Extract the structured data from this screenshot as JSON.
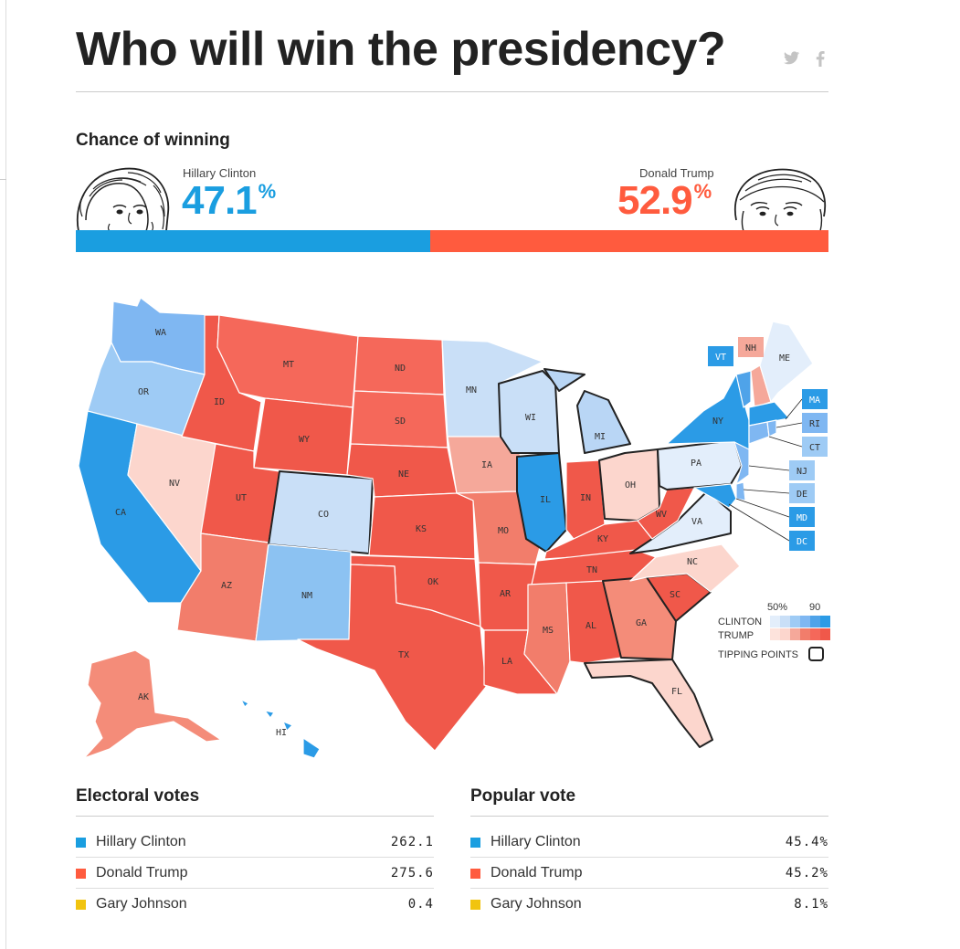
{
  "title": "Who will win the presidency?",
  "share": {
    "twitter": "twitter-icon",
    "facebook": "facebook-icon"
  },
  "chance": {
    "label": "Chance of winning",
    "clinton": {
      "name": "Hillary Clinton",
      "value": "47.1",
      "unit": "%",
      "fraction": 0.471,
      "color": "#1a9ee0"
    },
    "trump": {
      "name": "Donald Trump",
      "value": "52.9",
      "unit": "%",
      "fraction": 0.529,
      "color": "#ff5b3e"
    }
  },
  "map": {
    "states": [
      "WA",
      "OR",
      "CA",
      "NV",
      "ID",
      "MT",
      "WY",
      "UT",
      "AZ",
      "CO",
      "NM",
      "ND",
      "SD",
      "NE",
      "KS",
      "OK",
      "TX",
      "MN",
      "IA",
      "MO",
      "AR",
      "LA",
      "WI",
      "IL",
      "MI",
      "IN",
      "OH",
      "KY",
      "TN",
      "MS",
      "AL",
      "GA",
      "SC",
      "NC",
      "VA",
      "WV",
      "PA",
      "NY",
      "VT",
      "NH",
      "ME",
      "MA",
      "RI",
      "CT",
      "NJ",
      "DE",
      "MD",
      "DC",
      "FL",
      "AK",
      "HI"
    ],
    "boxes": [
      "VT",
      "NH",
      "ME",
      "MA",
      "RI",
      "CT",
      "NJ",
      "DE",
      "MD",
      "DC"
    ],
    "legend": {
      "low": "50%",
      "high": "90",
      "clinton": "CLINTON",
      "trump": "TRUMP",
      "tipping": "TIPPING POINTS"
    }
  },
  "electoral": {
    "label": "Electoral votes",
    "rows": [
      {
        "name": "Hillary Clinton",
        "value": "262.1",
        "color": "#1a9ee0"
      },
      {
        "name": "Donald Trump",
        "value": "275.6",
        "color": "#ff5b3e"
      },
      {
        "name": "Gary Johnson",
        "value": "0.4",
        "color": "#f1c40f"
      }
    ]
  },
  "popular": {
    "label": "Popular vote",
    "rows": [
      {
        "name": "Hillary Clinton",
        "value": "45.4%",
        "color": "#1a9ee0"
      },
      {
        "name": "Donald Trump",
        "value": "45.2%",
        "color": "#ff5b3e"
      },
      {
        "name": "Gary Johnson",
        "value": "8.1%",
        "color": "#f1c40f"
      }
    ]
  }
}
